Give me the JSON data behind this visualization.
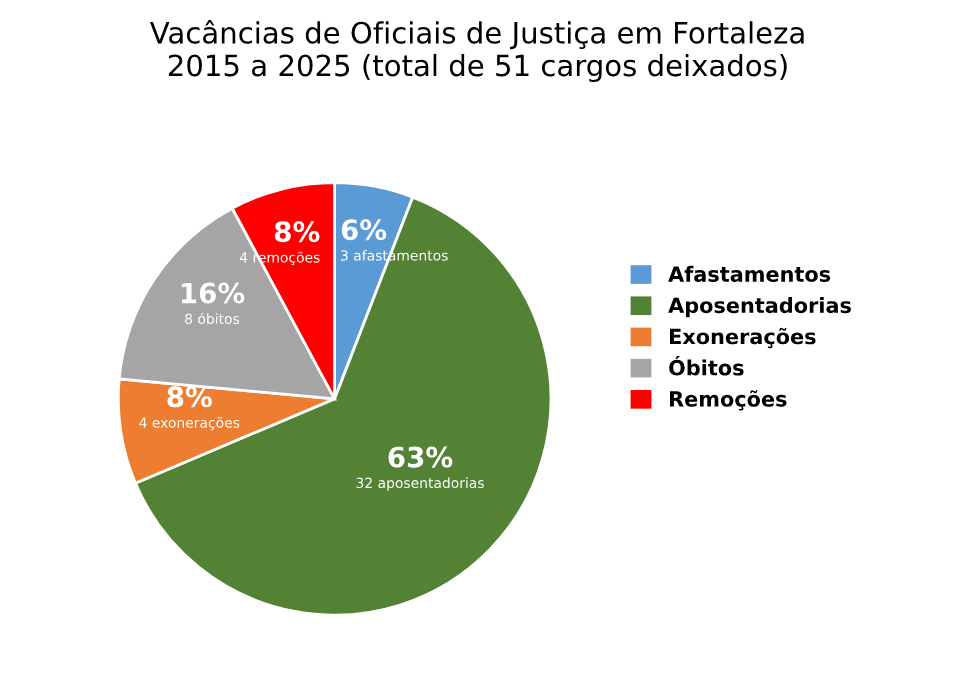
{
  "chart_data": {
    "type": "pie",
    "title": "Vacâncias de Oficiais de Justiça em Fortaleza\n2015 a 2025 (total de 51 cargos deixados)",
    "categories": [
      "Afastamentos",
      "Aposentadorias",
      "Exonerações",
      "Óbitos",
      "Remoções"
    ],
    "values": [
      3,
      32,
      4,
      8,
      4
    ],
    "colors": [
      "#5b9bd5",
      "#548235",
      "#ed7d31",
      "#a5a5a5",
      "#ff0000"
    ],
    "value_labels": [
      "6%\n3 afastamentos",
      "63%\n32 aposentadorias",
      "8%\n4 exonerações",
      "16%\n8 óbitos",
      "8%\n4 remoções"
    ],
    "legend": "right"
  }
}
